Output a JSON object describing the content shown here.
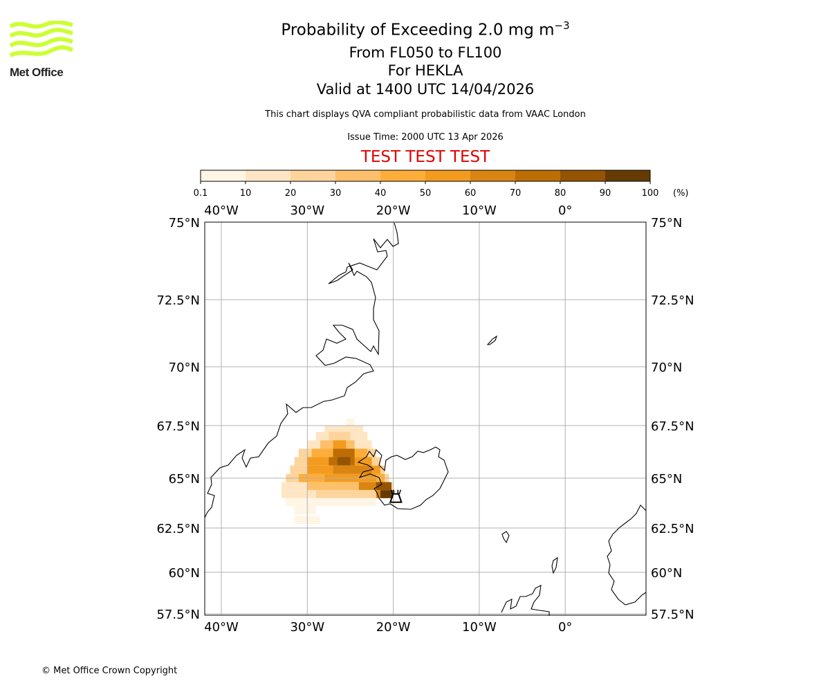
{
  "logo": {
    "text": "Met Office",
    "color": "#ccff33"
  },
  "title": {
    "main": "Probability of Exceeding 2.0 mg m",
    "superscript": "−3",
    "levels": "From FL050 to FL100",
    "volcano": "For HEKLA",
    "valid": "Valid at 1400 UTC 14/04/2026",
    "description": "This chart displays QVA compliant probabilistic data from VAAC London",
    "issue_time": "Issue Time: 2000 UTC 13 Apr 2026",
    "test_banner": "TEST TEST TEST",
    "test_color": "#e00000"
  },
  "colorbar": {
    "ticks": [
      "0.1",
      "10",
      "20",
      "30",
      "40",
      "50",
      "60",
      "70",
      "80",
      "90",
      "100"
    ],
    "unit": "(%)",
    "colors": [
      "#fff5e5",
      "#fee6c4",
      "#fdd49c",
      "#fdc06a",
      "#fdae3a",
      "#f39b1f",
      "#da8513",
      "#bc6d04",
      "#955403",
      "#653b03"
    ]
  },
  "chart_data": {
    "type": "heatmap",
    "title": "Probability of Exceeding 2.0 mg m−3",
    "lon_range": [
      -41.9,
      9.4
    ],
    "lat_range": [
      57.5,
      75
    ],
    "lon_ticks": [
      {
        "value": -40,
        "label": "40°W"
      },
      {
        "value": -30,
        "label": "30°W"
      },
      {
        "value": -20,
        "label": "20°W"
      },
      {
        "value": -10,
        "label": "10°W"
      },
      {
        "value": 0,
        "label": "0°"
      }
    ],
    "lat_ticks": [
      {
        "value": 75,
        "label": "75°N"
      },
      {
        "value": 72.5,
        "label": "72.5°N"
      },
      {
        "value": 70,
        "label": "70°N"
      },
      {
        "value": 67.5,
        "label": "67.5°N"
      },
      {
        "value": 65,
        "label": "65°N"
      },
      {
        "value": 62.5,
        "label": "62.5°N"
      },
      {
        "value": 60,
        "label": "60°N"
      },
      {
        "value": 57.5,
        "label": "57.5°N"
      }
    ],
    "grid": true,
    "volcano": {
      "name": "HEKLA",
      "lon": -19.7,
      "lat": 64.0
    },
    "strips": [
      {
        "lat": 67.6,
        "lon": [
          -25.5,
          -24.5
        ],
        "pct": 5
      },
      {
        "lat": 67.3,
        "lon": [
          -28,
          -23.5
        ],
        "pct": 10
      },
      {
        "lat": 67.0,
        "lon": [
          -29,
          -23
        ],
        "pct": 15
      },
      {
        "lat": 67.0,
        "lon": [
          -27.5,
          -25
        ],
        "pct": 25
      },
      {
        "lat": 66.6,
        "lon": [
          -30,
          -22.5
        ],
        "pct": 15
      },
      {
        "lat": 66.6,
        "lon": [
          -28.5,
          -24.5
        ],
        "pct": 35
      },
      {
        "lat": 66.6,
        "lon": [
          -27,
          -25.5
        ],
        "pct": 55
      },
      {
        "lat": 66.2,
        "lon": [
          -31,
          -22
        ],
        "pct": 20
      },
      {
        "lat": 66.2,
        "lon": [
          -29.5,
          -23
        ],
        "pct": 45
      },
      {
        "lat": 66.2,
        "lon": [
          -27,
          -24.5
        ],
        "pct": 70
      },
      {
        "lat": 65.8,
        "lon": [
          -31.5,
          -21.5
        ],
        "pct": 25
      },
      {
        "lat": 65.8,
        "lon": [
          -30,
          -22.5
        ],
        "pct": 50
      },
      {
        "lat": 65.8,
        "lon": [
          -27.5,
          -24.5
        ],
        "pct": 75
      },
      {
        "lat": 65.8,
        "lon": [
          -26.5,
          -25
        ],
        "pct": 85
      },
      {
        "lat": 65.4,
        "lon": [
          -32,
          -21
        ],
        "pct": 25
      },
      {
        "lat": 65.4,
        "lon": [
          -30,
          -21.5
        ],
        "pct": 50
      },
      {
        "lat": 65.4,
        "lon": [
          -27,
          -22.5
        ],
        "pct": 65
      },
      {
        "lat": 65.0,
        "lon": [
          -32.5,
          -20.5
        ],
        "pct": 20
      },
      {
        "lat": 65.0,
        "lon": [
          -31,
          -21
        ],
        "pct": 40
      },
      {
        "lat": 65.0,
        "lon": [
          -28,
          -22
        ],
        "pct": 55
      },
      {
        "lat": 64.6,
        "lon": [
          -33,
          -20
        ],
        "pct": 15
      },
      {
        "lat": 64.6,
        "lon": [
          -30,
          -20.5
        ],
        "pct": 35
      },
      {
        "lat": 64.6,
        "lon": [
          -24,
          -20.5
        ],
        "pct": 60
      },
      {
        "lat": 64.6,
        "lon": [
          -22,
          -20.2
        ],
        "pct": 80
      },
      {
        "lat": 64.2,
        "lon": [
          -33,
          -20
        ],
        "pct": 10
      },
      {
        "lat": 64.2,
        "lon": [
          -29,
          -21
        ],
        "pct": 20
      },
      {
        "lat": 64.2,
        "lon": [
          -22,
          -20
        ],
        "pct": 60
      },
      {
        "lat": 64.2,
        "lon": [
          -21.5,
          -20
        ],
        "pct": 90
      },
      {
        "lat": 63.8,
        "lon": [
          -32.5,
          -22
        ],
        "pct": 5
      },
      {
        "lat": 63.4,
        "lon": [
          -31.5,
          -29
        ],
        "pct": 5
      },
      {
        "lat": 62.9,
        "lon": [
          -31.5,
          -28.5
        ],
        "pct": 3
      }
    ]
  },
  "footer": {
    "copyright": "© Met Office Crown Copyright"
  }
}
